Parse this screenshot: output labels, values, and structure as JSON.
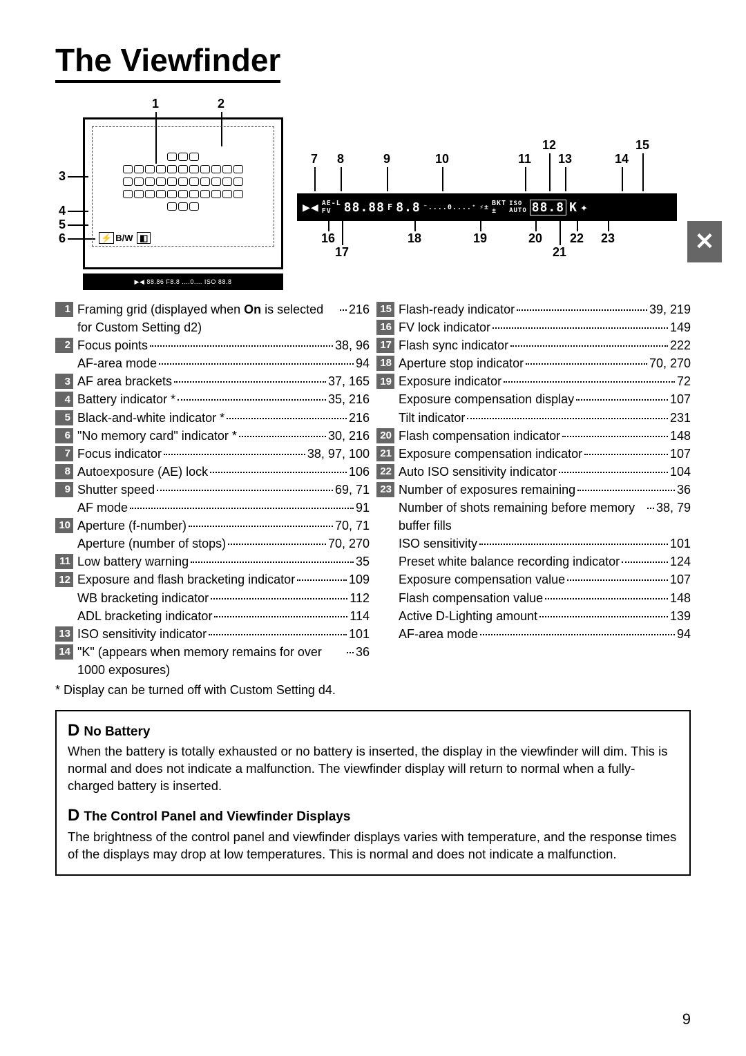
{
  "title": "The Viewfinder",
  "side_tab": "✕",
  "page_number": "9",
  "diagram": {
    "left_callouts_top": [
      "1",
      "2"
    ],
    "left_callouts_side": [
      "3",
      "4",
      "5",
      "6"
    ],
    "right_callouts_top": [
      "7",
      "8",
      "9",
      "10",
      "11",
      "12",
      "13",
      "14",
      "15"
    ],
    "right_callouts_bottom": [
      "16",
      "17",
      "18",
      "19",
      "20",
      "21",
      "22",
      "23"
    ],
    "bw_label": "B/W",
    "lcd_bottom": "▶◀ 88.86 F8.8 ....0.... ISO 88.8",
    "lcd_right": "▶◀ AE-L 88.88 F8.8 ....0.... BKT ISO AUTO 88.8 K ✦"
  },
  "left_items": [
    {
      "n": "1",
      "lines": [
        {
          "label_html": "Framing grid (displayed when <span class='bold-on'>On</span> is selected for Custom Setting d2)",
          "page": "216"
        }
      ]
    },
    {
      "n": "2",
      "lines": [
        {
          "label": "Focus points",
          "page": "38, 96"
        },
        {
          "label": "AF-area mode",
          "page": "94"
        }
      ]
    },
    {
      "n": "3",
      "lines": [
        {
          "label": "AF area brackets",
          "page": "37, 165"
        }
      ]
    },
    {
      "n": "4",
      "lines": [
        {
          "label": "Battery indicator *",
          "page": "35, 216"
        }
      ]
    },
    {
      "n": "5",
      "lines": [
        {
          "label": "Black-and-white indicator *",
          "page": "216"
        }
      ]
    },
    {
      "n": "6",
      "lines": [
        {
          "label": "\"No memory card\" indicator *",
          "page": "30, 216"
        }
      ]
    },
    {
      "n": "7",
      "lines": [
        {
          "label": "Focus indicator",
          "page": "38, 97, 100"
        }
      ]
    },
    {
      "n": "8",
      "lines": [
        {
          "label": "Autoexposure (AE) lock",
          "page": "106"
        }
      ]
    },
    {
      "n": "9",
      "lines": [
        {
          "label": "Shutter speed",
          "page": "69, 71"
        },
        {
          "label": "AF mode",
          "page": "91"
        }
      ]
    },
    {
      "n": "10",
      "lines": [
        {
          "label": "Aperture (f-number)",
          "page": "70, 71"
        },
        {
          "label": "Aperture (number of stops)",
          "page": "70, 270"
        }
      ]
    },
    {
      "n": "11",
      "lines": [
        {
          "label": "Low battery warning",
          "page": "35"
        }
      ]
    },
    {
      "n": "12",
      "lines": [
        {
          "label": "Exposure and flash bracketing indicator",
          "page": "109"
        },
        {
          "label": "WB bracketing indicator",
          "page": "112"
        },
        {
          "label": "ADL bracketing indicator",
          "page": "114"
        }
      ]
    },
    {
      "n": "13",
      "lines": [
        {
          "label": "ISO sensitivity indicator",
          "page": "101"
        }
      ]
    },
    {
      "n": "14",
      "lines": [
        {
          "label": "\"K\" (appears when memory remains for over 1000 exposures)",
          "page": "36"
        }
      ]
    }
  ],
  "right_items": [
    {
      "n": "15",
      "lines": [
        {
          "label": "Flash-ready indicator",
          "page": "39, 219"
        }
      ]
    },
    {
      "n": "16",
      "lines": [
        {
          "label": "FV lock indicator",
          "page": "149"
        }
      ]
    },
    {
      "n": "17",
      "lines": [
        {
          "label": "Flash sync indicator",
          "page": "222"
        }
      ]
    },
    {
      "n": "18",
      "lines": [
        {
          "label": "Aperture stop indicator",
          "page": "70, 270"
        }
      ]
    },
    {
      "n": "19",
      "lines": [
        {
          "label": "Exposure indicator",
          "page": "72"
        },
        {
          "label": "Exposure compensation display",
          "page": "107"
        },
        {
          "label": "Tilt indicator",
          "page": "231"
        }
      ]
    },
    {
      "n": "20",
      "lines": [
        {
          "label": "Flash compensation indicator",
          "page": "148"
        }
      ]
    },
    {
      "n": "21",
      "lines": [
        {
          "label": "Exposure compensation indicator",
          "page": "107"
        }
      ]
    },
    {
      "n": "22",
      "lines": [
        {
          "label": "Auto ISO sensitivity indicator",
          "page": "104"
        }
      ]
    },
    {
      "n": "23",
      "lines": [
        {
          "label": "Number of exposures remaining",
          "page": "36"
        },
        {
          "label": "Number of shots remaining before memory buffer fills",
          "page": "38, 79"
        },
        {
          "label": "ISO sensitivity",
          "page": "101"
        },
        {
          "label": "Preset white balance recording indicator",
          "page": "124"
        },
        {
          "label": "Exposure compensation value",
          "page": "107"
        },
        {
          "label": "Flash compensation value",
          "page": "148"
        },
        {
          "label": "Active D-Lighting amount",
          "page": "139"
        },
        {
          "label": "AF-area mode",
          "page": "94"
        }
      ]
    }
  ],
  "footnote": "* Display can be turned off with Custom Setting d4.",
  "notes": [
    {
      "title": "No Battery",
      "body": "When the battery is totally exhausted or no battery is inserted, the display in the viewfinder will dim.  This is normal and does not indicate a malfunction.  The viewfinder display will return to normal when a fully-charged battery is inserted."
    },
    {
      "title": "The Control Panel and Viewfinder Displays",
      "body": "The brightness of the control panel and viewfinder displays varies with temperature, and the response times of the displays may drop at low temperatures.  This is normal and does not indicate a malfunction."
    }
  ]
}
